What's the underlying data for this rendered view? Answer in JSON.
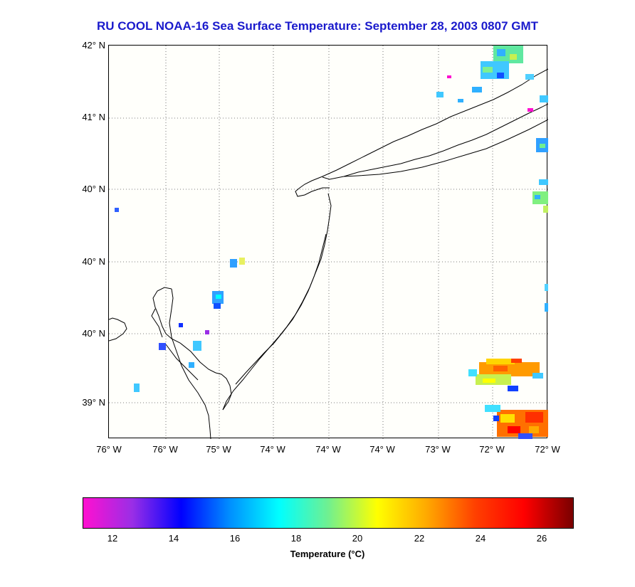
{
  "title": "RU COOL  NOAA-16  Sea Surface Temperature:  September 28, 2003 0807 GMT",
  "map": {
    "lat_labels": [
      "42° N",
      "41° N",
      "40° N",
      "40° N",
      "40° N",
      "39° N"
    ],
    "lon_labels": [
      "76° W",
      "76° W",
      "75° W",
      "74° W",
      "74° W",
      "74° W",
      "73° W",
      "72° W",
      "72° W"
    ],
    "grid": true,
    "coastline_color": "#000000",
    "background": "#fffffb"
  },
  "colorbar": {
    "ticks": [
      "12",
      "14",
      "16",
      "18",
      "20",
      "22",
      "24",
      "26"
    ],
    "label": "Temperature (°C)",
    "range": [
      11,
      27
    ],
    "colors": [
      "#ff10d0",
      "#9a2ee6",
      "#0000ff",
      "#0090ff",
      "#00ffff",
      "#70f090",
      "#ffff00",
      "#ffaa00",
      "#ff4000",
      "#ff0000",
      "#7a0000"
    ]
  },
  "sst_patches": [
    {
      "id": "ne-top",
      "temp": 17
    },
    {
      "id": "ne-right",
      "temp": 16.5
    },
    {
      "id": "west-small",
      "temp": 14
    },
    {
      "id": "delaware",
      "temp": 15.5
    },
    {
      "id": "se-warm",
      "temp": 23
    },
    {
      "id": "se-bottom",
      "temp": 24.5
    }
  ]
}
